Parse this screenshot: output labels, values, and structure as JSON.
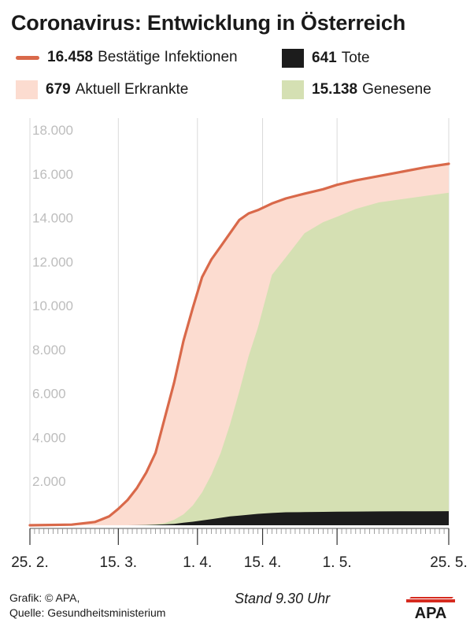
{
  "title": "Coronavirus: Entwicklung in Österreich",
  "legend": {
    "infected": {
      "value": "16.458",
      "label": "Bestätige Infektionen",
      "color": "#d9694a"
    },
    "deaths": {
      "value": "641",
      "label": "Tote",
      "color": "#1c1c1c"
    },
    "active": {
      "value": "679",
      "label": "Aktuell Erkrankte",
      "color": "#fcdcd0"
    },
    "recovered": {
      "value": "15.138",
      "label": "Genesene",
      "color": "#d5e0b3"
    }
  },
  "footer": {
    "credit": "Grafik: © APA,",
    "source": "Quelle: Gesundheitsministerium",
    "stand": "Stand 9.30 Uhr",
    "logo_text": "APA"
  },
  "chart_data": {
    "type": "area",
    "x": [
      "2020-02-25",
      "2020-03-05",
      "2020-03-10",
      "2020-03-13",
      "2020-03-15",
      "2020-03-17",
      "2020-03-19",
      "2020-03-21",
      "2020-03-23",
      "2020-03-25",
      "2020-03-27",
      "2020-03-29",
      "2020-03-31",
      "2020-04-02",
      "2020-04-04",
      "2020-04-06",
      "2020-04-08",
      "2020-04-10",
      "2020-04-12",
      "2020-04-14",
      "2020-04-17",
      "2020-04-20",
      "2020-04-24",
      "2020-04-28",
      "2020-05-01",
      "2020-05-05",
      "2020-05-10",
      "2020-05-15",
      "2020-05-20",
      "2020-05-25"
    ],
    "series": [
      {
        "name": "Bestätige Infektionen",
        "role": "infected",
        "values": [
          0,
          30,
          150,
          400,
          750,
          1150,
          1700,
          2400,
          3300,
          4900,
          6500,
          8400,
          9900,
          11300,
          12100,
          12700,
          13300,
          13900,
          14200,
          14350,
          14650,
          14880,
          15100,
          15300,
          15500,
          15700,
          15900,
          16100,
          16300,
          16458
        ]
      },
      {
        "name": "Genesene",
        "role": "recovered",
        "values": [
          0,
          0,
          0,
          0,
          0,
          0,
          0,
          20,
          50,
          100,
          250,
          500,
          900,
          1500,
          2300,
          3300,
          4600,
          6100,
          7700,
          9000,
          11400,
          12200,
          13300,
          13800,
          14050,
          14400,
          14700,
          14850,
          15000,
          15138
        ]
      },
      {
        "name": "Tote",
        "role": "deaths",
        "values": [
          0,
          0,
          0,
          0,
          0,
          1,
          5,
          10,
          20,
          40,
          60,
          120,
          160,
          220,
          280,
          340,
          400,
          440,
          480,
          520,
          560,
          590,
          600,
          610,
          620,
          625,
          630,
          635,
          638,
          641
        ]
      }
    ],
    "ylim": [
      0,
      18000
    ],
    "yticks": [
      "2.000",
      "4.000",
      "6.000",
      "8.000",
      "10.000",
      "12.000",
      "14.000",
      "16.000",
      "18.000"
    ],
    "xtick_labels": [
      "25. 2.",
      "15. 3.",
      "1. 4.",
      "15. 4.",
      "1. 5.",
      "25. 5."
    ],
    "xtick_dates": [
      "2020-02-25",
      "2020-03-15",
      "2020-04-01",
      "2020-04-15",
      "2020-05-01",
      "2020-05-25"
    ],
    "grid": "vertical"
  }
}
